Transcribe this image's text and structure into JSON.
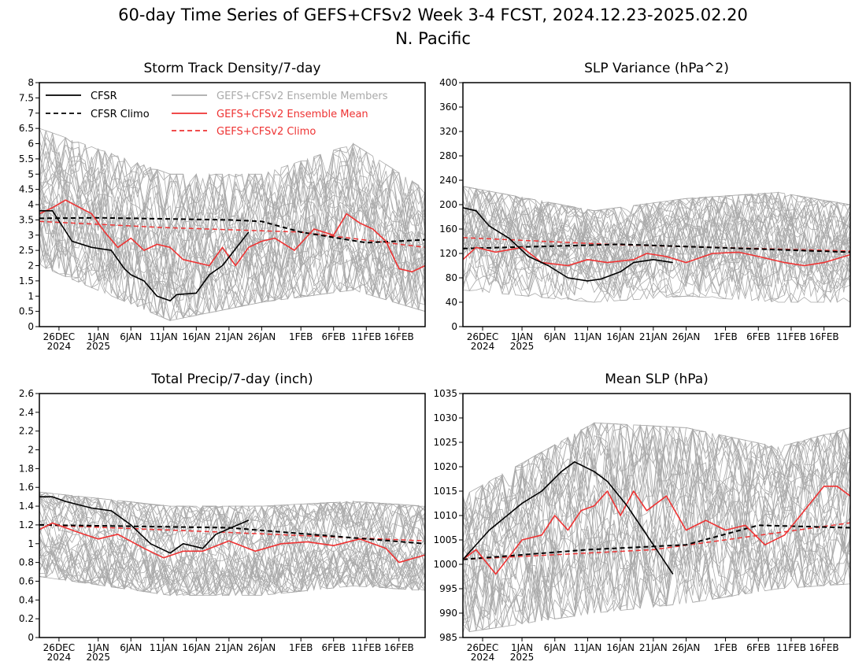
{
  "title_line1": "60-day Time Series of GEFS+CFSv2 Week 3-4 FCST, 2024.12.23-2025.02.20",
  "title_line2": "N. Pacific",
  "date_axis": {
    "start": "2024-12-23",
    "end": "2025-02-20",
    "ticks": [
      {
        "date": "2024-12-26",
        "label": "26DEC",
        "sub": "2024"
      },
      {
        "date": "2025-01-01",
        "label": "1JAN",
        "sub": "2025"
      },
      {
        "date": "2025-01-06",
        "label": "6JAN",
        "sub": ""
      },
      {
        "date": "2025-01-11",
        "label": "11JAN",
        "sub": ""
      },
      {
        "date": "2025-01-16",
        "label": "16JAN",
        "sub": ""
      },
      {
        "date": "2025-01-21",
        "label": "21JAN",
        "sub": ""
      },
      {
        "date": "2025-01-26",
        "label": "26JAN",
        "sub": ""
      },
      {
        "date": "2025-02-01",
        "label": "1FEB",
        "sub": ""
      },
      {
        "date": "2025-02-06",
        "label": "6FEB",
        "sub": ""
      },
      {
        "date": "2025-02-11",
        "label": "11FEB",
        "sub": ""
      },
      {
        "date": "2025-02-16",
        "label": "16FEB",
        "sub": ""
      }
    ]
  },
  "legend": [
    {
      "label": "CFSR",
      "color": "#000000",
      "dash": false
    },
    {
      "label": "CFSR Climo",
      "color": "#000000",
      "dash": true
    },
    {
      "label": "GEFS+CFSv2 Ensemble Members",
      "color": "#aaaaaa",
      "dash": false
    },
    {
      "label": "GEFS+CFSv2 Ensemble Mean",
      "color": "#ee3333",
      "dash": false
    },
    {
      "label": "GEFS+CFSv2 Climo",
      "color": "#ee3333",
      "dash": true
    }
  ],
  "colors": {
    "members": "#aaaaaa",
    "mean": "#ee3333",
    "cfsr": "#000000"
  },
  "chart_data": [
    {
      "type": "line",
      "title": "Storm Track Density/7-day",
      "ylim": [
        0,
        8
      ],
      "yticks": [
        "0",
        "0.5",
        "1",
        "1.5",
        "2",
        "2.5",
        "3",
        "3.5",
        "4",
        "4.5",
        "5",
        "5.5",
        "6",
        "6.5",
        "7",
        "7.5",
        "8"
      ],
      "member_band": {
        "date": [
          "2024-12-23",
          "2025-01-12",
          "2025-01-26",
          "2025-02-09",
          "2025-02-20"
        ],
        "low": [
          2.0,
          0.2,
          0.8,
          1.2,
          0.5
        ],
        "high": [
          6.5,
          5.0,
          5.0,
          6.0,
          4.5
        ]
      },
      "series": [
        {
          "name": "CFSR",
          "date": [
            "2024-12-23",
            "2024-12-25",
            "2024-12-28",
            "2024-12-31",
            "2025-01-03",
            "2025-01-05",
            "2025-01-06",
            "2025-01-08",
            "2025-01-10",
            "2025-01-12",
            "2025-01-13",
            "2025-01-16",
            "2025-01-18",
            "2025-01-20",
            "2025-01-24"
          ],
          "values": [
            3.8,
            3.8,
            2.8,
            2.6,
            2.5,
            1.9,
            1.7,
            1.5,
            1.0,
            0.85,
            1.05,
            1.1,
            1.7,
            2.0,
            3.1
          ]
        },
        {
          "name": "CFSR Climo",
          "date": [
            "2024-12-23",
            "2025-01-01",
            "2025-01-21",
            "2025-01-26",
            "2025-02-01",
            "2025-02-11",
            "2025-02-20"
          ],
          "values": [
            3.55,
            3.57,
            3.5,
            3.45,
            3.1,
            2.75,
            2.85
          ]
        },
        {
          "name": "GEFS+CFSv2 Ensemble Mean",
          "date": [
            "2024-12-23",
            "2024-12-25",
            "2024-12-27",
            "2024-12-31",
            "2025-01-02",
            "2025-01-04",
            "2025-01-06",
            "2025-01-08",
            "2025-01-10",
            "2025-01-12",
            "2025-01-14",
            "2025-01-16",
            "2025-01-18",
            "2025-01-20",
            "2025-01-22",
            "2025-01-24",
            "2025-01-26",
            "2025-01-28",
            "2025-01-31",
            "2025-02-03",
            "2025-02-06",
            "2025-02-08",
            "2025-02-10",
            "2025-02-12",
            "2025-02-14",
            "2025-02-16",
            "2025-02-18",
            "2025-02-20"
          ],
          "values": [
            3.7,
            3.9,
            4.15,
            3.7,
            3.1,
            2.6,
            2.9,
            2.5,
            2.7,
            2.6,
            2.2,
            2.1,
            2.0,
            2.6,
            2.0,
            2.6,
            2.8,
            2.9,
            2.5,
            3.2,
            3.0,
            3.7,
            3.4,
            3.2,
            2.8,
            1.9,
            1.8,
            2.0
          ]
        },
        {
          "name": "GEFS+CFSv2 Climo",
          "date": [
            "2024-12-23",
            "2025-01-11",
            "2025-02-01",
            "2025-02-20"
          ],
          "values": [
            3.45,
            3.25,
            3.1,
            2.6
          ]
        }
      ]
    },
    {
      "type": "line",
      "title": "SLP Variance (hPa^2)",
      "ylim": [
        0,
        400
      ],
      "yticks": [
        "0",
        "40",
        "80",
        "120",
        "160",
        "200",
        "240",
        "280",
        "320",
        "360",
        "400"
      ],
      "member_band": {
        "date": [
          "2024-12-23",
          "2025-01-12",
          "2025-01-26",
          "2025-02-09",
          "2025-02-20"
        ],
        "low": [
          60,
          40,
          50,
          40,
          40
        ],
        "high": [
          230,
          190,
          210,
          220,
          200
        ]
      },
      "series": [
        {
          "name": "CFSR",
          "date": [
            "2024-12-23",
            "2024-12-25",
            "2024-12-27",
            "2024-12-30",
            "2025-01-02",
            "2025-01-05",
            "2025-01-08",
            "2025-01-11",
            "2025-01-13",
            "2025-01-16",
            "2025-01-18",
            "2025-01-21",
            "2025-01-24"
          ],
          "values": [
            195,
            190,
            165,
            145,
            115,
            100,
            80,
            75,
            78,
            90,
            105,
            110,
            105
          ]
        },
        {
          "name": "CFSR Climo",
          "date": [
            "2024-12-23",
            "2025-01-16",
            "2025-02-20"
          ],
          "values": [
            128,
            135,
            122
          ]
        },
        {
          "name": "GEFS+CFSv2 Ensemble Mean",
          "date": [
            "2024-12-23",
            "2024-12-25",
            "2024-12-28",
            "2025-01-01",
            "2025-01-04",
            "2025-01-08",
            "2025-01-11",
            "2025-01-14",
            "2025-01-18",
            "2025-01-20",
            "2025-01-23",
            "2025-01-26",
            "2025-01-30",
            "2025-02-03",
            "2025-02-06",
            "2025-02-10",
            "2025-02-13",
            "2025-02-16",
            "2025-02-20"
          ],
          "values": [
            110,
            130,
            122,
            130,
            105,
            100,
            110,
            105,
            110,
            120,
            115,
            105,
            120,
            122,
            115,
            105,
            100,
            105,
            118
          ]
        },
        {
          "name": "GEFS+CFSv2 Climo",
          "date": [
            "2024-12-23",
            "2025-01-16",
            "2025-02-20"
          ],
          "values": [
            146,
            134,
            124
          ]
        }
      ]
    },
    {
      "type": "line",
      "title": "Total Precip/7-day (inch)",
      "ylim": [
        0,
        2.6
      ],
      "yticks": [
        "0",
        "0.2",
        "0.4",
        "0.6",
        "0.8",
        "1",
        "1.2",
        "1.4",
        "1.6",
        "1.8",
        "2",
        "2.2",
        "2.4",
        "2.6"
      ],
      "member_band": {
        "date": [
          "2024-12-23",
          "2025-01-12",
          "2025-01-26",
          "2025-02-09",
          "2025-02-20"
        ],
        "low": [
          0.65,
          0.45,
          0.45,
          0.55,
          0.5
        ],
        "high": [
          1.55,
          1.4,
          1.4,
          1.45,
          1.4
        ]
      },
      "series": [
        {
          "name": "CFSR",
          "date": [
            "2024-12-23",
            "2024-12-25",
            "2024-12-27",
            "2024-12-31",
            "2025-01-03",
            "2025-01-06",
            "2025-01-09",
            "2025-01-12",
            "2025-01-14",
            "2025-01-17",
            "2025-01-19",
            "2025-01-24"
          ],
          "values": [
            1.5,
            1.5,
            1.45,
            1.38,
            1.35,
            1.2,
            1.0,
            0.9,
            1.0,
            0.95,
            1.1,
            1.25
          ]
        },
        {
          "name": "CFSR Climo",
          "date": [
            "2024-12-23",
            "2025-01-21",
            "2025-02-20"
          ],
          "values": [
            1.2,
            1.17,
            1.0
          ]
        },
        {
          "name": "GEFS+CFSv2 Ensemble Mean",
          "date": [
            "2024-12-23",
            "2024-12-25",
            "2024-12-29",
            "2025-01-01",
            "2025-01-04",
            "2025-01-08",
            "2025-01-11",
            "2025-01-14",
            "2025-01-17",
            "2025-01-21",
            "2025-01-25",
            "2025-01-29",
            "2025-02-02",
            "2025-02-06",
            "2025-02-10",
            "2025-02-14",
            "2025-02-16",
            "2025-02-20"
          ],
          "values": [
            1.15,
            1.22,
            1.12,
            1.05,
            1.1,
            0.95,
            0.85,
            0.92,
            0.92,
            1.03,
            0.92,
            1.0,
            1.02,
            0.98,
            1.05,
            0.95,
            0.8,
            0.88
          ]
        },
        {
          "name": "GEFS+CFSv2 Climo",
          "date": [
            "2024-12-23",
            "2025-01-21",
            "2025-02-20"
          ],
          "values": [
            1.2,
            1.12,
            1.03
          ]
        }
      ]
    },
    {
      "type": "line",
      "title": "Mean SLP (hPa)",
      "ylim": [
        985,
        1035
      ],
      "yticks": [
        "985",
        "990",
        "995",
        "1000",
        "1005",
        "1010",
        "1015",
        "1020",
        "1025",
        "1030",
        "1035"
      ],
      "member_band": {
        "date": [
          "2024-12-23",
          "2025-01-12",
          "2025-01-26",
          "2025-02-09",
          "2025-02-20"
        ],
        "low": [
          986,
          990,
          992,
          995,
          996
        ],
        "high": [
          1014,
          1029,
          1028,
          1024,
          1028
        ]
      },
      "series": [
        {
          "name": "CFSR",
          "date": [
            "2024-12-23",
            "2024-12-27",
            "2025-01-01",
            "2025-01-04",
            "2025-01-07",
            "2025-01-09",
            "2025-01-12",
            "2025-01-14",
            "2025-01-17",
            "2025-01-19",
            "2025-01-22",
            "2025-01-24"
          ],
          "values": [
            1001,
            1007,
            1012.5,
            1015,
            1019,
            1021,
            1019,
            1017,
            1012,
            1008,
            1002,
            998
          ]
        },
        {
          "name": "CFSR Climo",
          "date": [
            "2024-12-23",
            "2025-01-11",
            "2025-01-26",
            "2025-02-06",
            "2025-02-20"
          ],
          "values": [
            1001,
            1003,
            1004,
            1008,
            1007.5
          ]
        },
        {
          "name": "GEFS+CFSv2 Ensemble Mean",
          "date": [
            "2024-12-23",
            "2024-12-25",
            "2024-12-28",
            "2025-01-01",
            "2025-01-04",
            "2025-01-06",
            "2025-01-08",
            "2025-01-10",
            "2025-01-12",
            "2025-01-14",
            "2025-01-16",
            "2025-01-18",
            "2025-01-20",
            "2025-01-23",
            "2025-01-26",
            "2025-01-29",
            "2025-02-01",
            "2025-02-04",
            "2025-02-07",
            "2025-02-10",
            "2025-02-13",
            "2025-02-16",
            "2025-02-18",
            "2025-02-20"
          ],
          "values": [
            1001,
            1003,
            998,
            1005,
            1006,
            1010,
            1007,
            1011,
            1012,
            1015,
            1010,
            1015,
            1011,
            1014,
            1007,
            1009,
            1007,
            1008,
            1004,
            1006,
            1011,
            1016,
            1016,
            1014
          ]
        },
        {
          "name": "GEFS+CFSv2 Climo",
          "date": [
            "2024-12-23",
            "2025-01-21",
            "2025-02-20"
          ],
          "values": [
            1001,
            1003,
            1008.5
          ]
        }
      ]
    }
  ]
}
